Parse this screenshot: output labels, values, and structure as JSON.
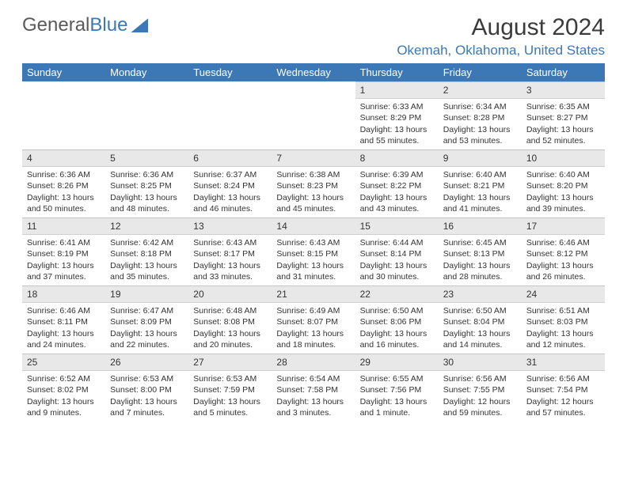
{
  "brand": {
    "part1": "General",
    "part2": "Blue"
  },
  "title": "August 2024",
  "location": "Okemah, Oklahoma, United States",
  "colors": {
    "accent": "#3b78b5",
    "header_text": "#ffffff",
    "daynum_bg": "#e8e8e8",
    "text": "#333333"
  },
  "weekdays": [
    "Sunday",
    "Monday",
    "Tuesday",
    "Wednesday",
    "Thursday",
    "Friday",
    "Saturday"
  ],
  "weeks": [
    [
      null,
      null,
      null,
      null,
      {
        "d": "1",
        "sr": "6:33 AM",
        "ss": "8:29 PM",
        "dl": "13 hours and 55 minutes."
      },
      {
        "d": "2",
        "sr": "6:34 AM",
        "ss": "8:28 PM",
        "dl": "13 hours and 53 minutes."
      },
      {
        "d": "3",
        "sr": "6:35 AM",
        "ss": "8:27 PM",
        "dl": "13 hours and 52 minutes."
      }
    ],
    [
      {
        "d": "4",
        "sr": "6:36 AM",
        "ss": "8:26 PM",
        "dl": "13 hours and 50 minutes."
      },
      {
        "d": "5",
        "sr": "6:36 AM",
        "ss": "8:25 PM",
        "dl": "13 hours and 48 minutes."
      },
      {
        "d": "6",
        "sr": "6:37 AM",
        "ss": "8:24 PM",
        "dl": "13 hours and 46 minutes."
      },
      {
        "d": "7",
        "sr": "6:38 AM",
        "ss": "8:23 PM",
        "dl": "13 hours and 45 minutes."
      },
      {
        "d": "8",
        "sr": "6:39 AM",
        "ss": "8:22 PM",
        "dl": "13 hours and 43 minutes."
      },
      {
        "d": "9",
        "sr": "6:40 AM",
        "ss": "8:21 PM",
        "dl": "13 hours and 41 minutes."
      },
      {
        "d": "10",
        "sr": "6:40 AM",
        "ss": "8:20 PM",
        "dl": "13 hours and 39 minutes."
      }
    ],
    [
      {
        "d": "11",
        "sr": "6:41 AM",
        "ss": "8:19 PM",
        "dl": "13 hours and 37 minutes."
      },
      {
        "d": "12",
        "sr": "6:42 AM",
        "ss": "8:18 PM",
        "dl": "13 hours and 35 minutes."
      },
      {
        "d": "13",
        "sr": "6:43 AM",
        "ss": "8:17 PM",
        "dl": "13 hours and 33 minutes."
      },
      {
        "d": "14",
        "sr": "6:43 AM",
        "ss": "8:15 PM",
        "dl": "13 hours and 31 minutes."
      },
      {
        "d": "15",
        "sr": "6:44 AM",
        "ss": "8:14 PM",
        "dl": "13 hours and 30 minutes."
      },
      {
        "d": "16",
        "sr": "6:45 AM",
        "ss": "8:13 PM",
        "dl": "13 hours and 28 minutes."
      },
      {
        "d": "17",
        "sr": "6:46 AM",
        "ss": "8:12 PM",
        "dl": "13 hours and 26 minutes."
      }
    ],
    [
      {
        "d": "18",
        "sr": "6:46 AM",
        "ss": "8:11 PM",
        "dl": "13 hours and 24 minutes."
      },
      {
        "d": "19",
        "sr": "6:47 AM",
        "ss": "8:09 PM",
        "dl": "13 hours and 22 minutes."
      },
      {
        "d": "20",
        "sr": "6:48 AM",
        "ss": "8:08 PM",
        "dl": "13 hours and 20 minutes."
      },
      {
        "d": "21",
        "sr": "6:49 AM",
        "ss": "8:07 PM",
        "dl": "13 hours and 18 minutes."
      },
      {
        "d": "22",
        "sr": "6:50 AM",
        "ss": "8:06 PM",
        "dl": "13 hours and 16 minutes."
      },
      {
        "d": "23",
        "sr": "6:50 AM",
        "ss": "8:04 PM",
        "dl": "13 hours and 14 minutes."
      },
      {
        "d": "24",
        "sr": "6:51 AM",
        "ss": "8:03 PM",
        "dl": "13 hours and 12 minutes."
      }
    ],
    [
      {
        "d": "25",
        "sr": "6:52 AM",
        "ss": "8:02 PM",
        "dl": "13 hours and 9 minutes."
      },
      {
        "d": "26",
        "sr": "6:53 AM",
        "ss": "8:00 PM",
        "dl": "13 hours and 7 minutes."
      },
      {
        "d": "27",
        "sr": "6:53 AM",
        "ss": "7:59 PM",
        "dl": "13 hours and 5 minutes."
      },
      {
        "d": "28",
        "sr": "6:54 AM",
        "ss": "7:58 PM",
        "dl": "13 hours and 3 minutes."
      },
      {
        "d": "29",
        "sr": "6:55 AM",
        "ss": "7:56 PM",
        "dl": "13 hours and 1 minute."
      },
      {
        "d": "30",
        "sr": "6:56 AM",
        "ss": "7:55 PM",
        "dl": "12 hours and 59 minutes."
      },
      {
        "d": "31",
        "sr": "6:56 AM",
        "ss": "7:54 PM",
        "dl": "12 hours and 57 minutes."
      }
    ]
  ],
  "labels": {
    "sunrise": "Sunrise: ",
    "sunset": "Sunset: ",
    "daylight": "Daylight: "
  }
}
